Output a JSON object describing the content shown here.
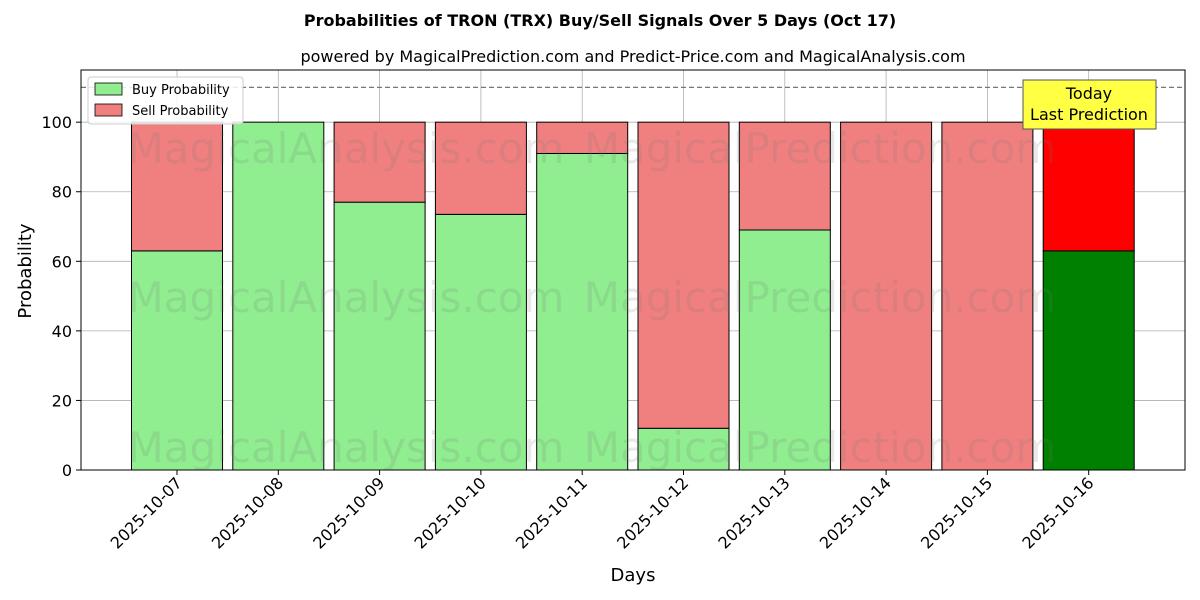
{
  "chart_data": {
    "type": "bar",
    "stacked": true,
    "title": "Probabilities of TRON (TRX) Buy/Sell Signals Over 5 Days (Oct 17)",
    "subtitle": "powered by MagicalPrediction.com and Predict-Price.com and MagicalAnalysis.com",
    "xlabel": "Days",
    "ylabel": "Probability",
    "ylim": [
      0,
      115
    ],
    "yticks": [
      0,
      20,
      40,
      60,
      80,
      100
    ],
    "reference_line": 110,
    "grid": true,
    "legend_position": "top-left",
    "categories": [
      "2025-10-07",
      "2025-10-08",
      "2025-10-09",
      "2025-10-10",
      "2025-10-11",
      "2025-10-12",
      "2025-10-13",
      "2025-10-14",
      "2025-10-15",
      "2025-10-16"
    ],
    "series": [
      {
        "name": "Buy Probability",
        "color": "#90ee90",
        "highlight_color": "#008000",
        "values": [
          63,
          100,
          77,
          73.5,
          91,
          12,
          69,
          0,
          0,
          63
        ]
      },
      {
        "name": "Sell Probability",
        "color": "#f08080",
        "highlight_color": "#ff0000",
        "values": [
          37,
          0,
          23,
          26.5,
          9,
          88,
          31,
          100,
          100,
          37
        ]
      }
    ],
    "highlight_index": 9,
    "annotation": {
      "line1": "Today",
      "line2": "Last Prediction",
      "background": "#ffff44"
    },
    "watermarks": [
      "MagicalAnalysis.com",
      "MagicalPrediction.com",
      "MagicalAnalysis.com",
      "MagicalPrediction.com",
      "MagicalAnalysis.com",
      "MagicalPrediction.com"
    ]
  }
}
